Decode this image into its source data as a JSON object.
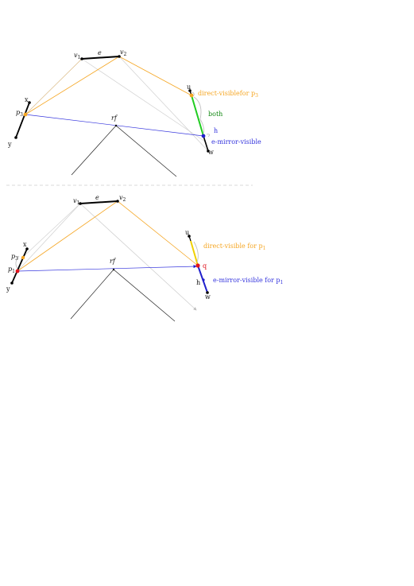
{
  "colors": {
    "orange": "#f5a623",
    "blue": "#3333dd",
    "green": "#22cc22",
    "gray": "#cccccc",
    "black": "#000000",
    "red": "#e0141e",
    "yellow": "#f0d000",
    "divider": "#cccccc"
  },
  "top": {
    "v1": "v",
    "v1_sub": "1",
    "e": "e",
    "v2": "v",
    "v2_sub": "2",
    "x": "x",
    "y": "y",
    "p": "p",
    "p_sub": "3",
    "rf": "rf",
    "u": "u",
    "w": "w",
    "h": "h",
    "direct_visible": "direct-visiblefor p",
    "direct_visible_sub": "3",
    "both": "both",
    "e_mirror_visible": "e-mirror-visible"
  },
  "bottom": {
    "v1": "v",
    "v1_sub": "1",
    "e": "e",
    "v2": "v",
    "v2_sub": "2",
    "x": "x",
    "y": "y",
    "p1": "p",
    "p1_sub": "1",
    "p3": "p",
    "p3_sub": "3",
    "rf": "rf",
    "u": "u",
    "w": "w",
    "h": "h",
    "q": "q",
    "direct_visible": "direct-visible for p",
    "direct_visible_sub": "1",
    "e_mirror_visible": "e-mirror-visible for p",
    "e_mirror_visible_sub": "1"
  }
}
